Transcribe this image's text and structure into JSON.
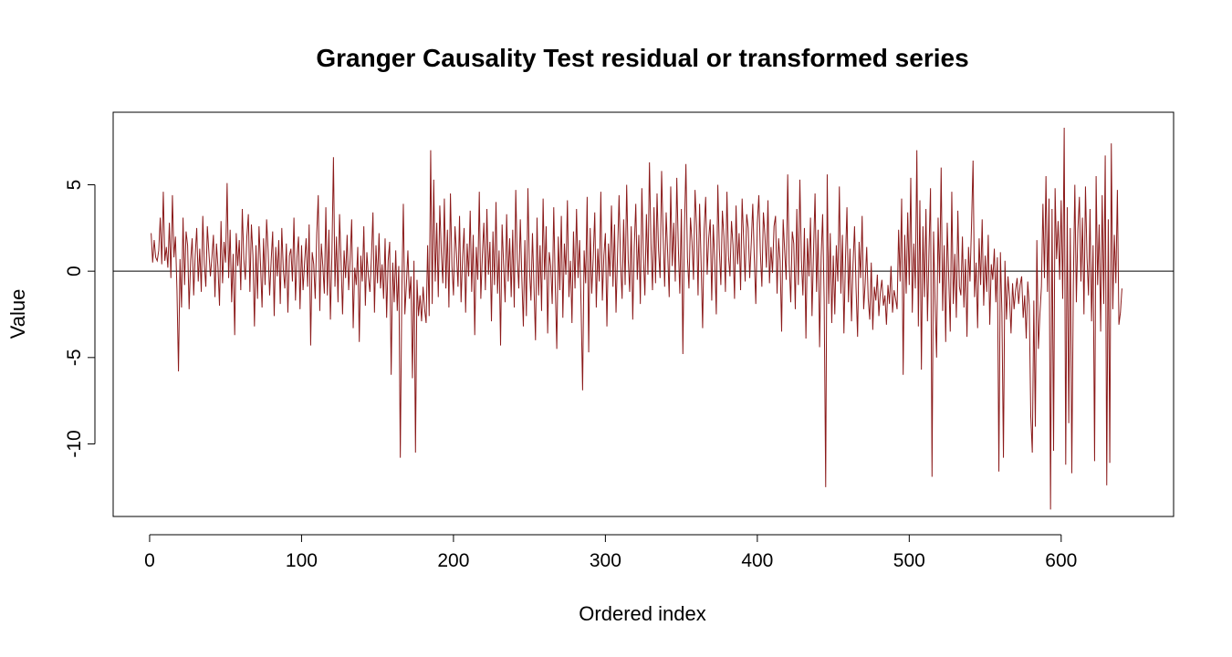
{
  "chart_data": {
    "type": "line",
    "title": "Granger Causality Test residual or transformed series",
    "xlabel": "Ordered index",
    "ylabel": "Value",
    "xlim": [
      -24,
      674
    ],
    "ylim": [
      -14.2,
      9.2
    ],
    "x_ticks": [
      0,
      100,
      200,
      300,
      400,
      500,
      600
    ],
    "y_ticks": [
      -10,
      -5,
      0,
      5
    ],
    "reference_line": 0,
    "line_color": "#8B1A1A",
    "grid": false,
    "legend": "none",
    "series": [
      {
        "x_start": 1,
        "x_step": 1,
        "values": [
          2.2,
          0.5,
          1.8,
          0.8,
          0.6,
          1.2,
          3.1,
          0.4,
          4.6,
          0.6,
          1.4,
          0.2,
          2.8,
          -0.4,
          4.4,
          0.8,
          2.0,
          -1.1,
          -5.8,
          0.7,
          -2.1,
          3.1,
          -0.8,
          2.3,
          1.5,
          -2.2,
          0.6,
          1.9,
          -1.4,
          0.9,
          2.5,
          -0.6,
          1.3,
          -1.2,
          3.2,
          0.4,
          -0.9,
          2.6,
          1.1,
          -0.3,
          0.8,
          2.1,
          -1.5,
          1.6,
          0.2,
          -2.0,
          2.9,
          -0.7,
          1.7,
          0.5,
          5.1,
          -0.4,
          2.4,
          -1.8,
          1.0,
          -3.7,
          2.2,
          0.3,
          1.8,
          -1.1,
          3.6,
          0.7,
          -0.5,
          2.0,
          3.3,
          -1.2,
          2.7,
          0.9,
          -3.2,
          1.5,
          -1.6,
          2.6,
          0.4,
          -2.1,
          1.9,
          -0.8,
          3.0,
          1.2,
          -1.4,
          0.6,
          2.3,
          -2.6,
          1.4,
          -0.3,
          1.8,
          -1.9,
          2.5,
          0.1,
          -1.0,
          1.6,
          -2.4,
          0.9,
          1.3,
          -0.6,
          3.1,
          -1.7,
          0.8,
          2.0,
          -2.2,
          1.5,
          -1.1,
          0.5,
          1.9,
          -0.9,
          2.7,
          -4.3,
          1.1,
          0.4,
          -1.6,
          2.2,
          4.4,
          -2.3,
          1.6,
          0.3,
          -1.3,
          3.7,
          -1.4,
          2.4,
          -2.8,
          1.0,
          6.6,
          -0.9,
          2.0,
          -1.8,
          3.3,
          0.6,
          -2.5,
          1.2,
          -0.4,
          2.1,
          -1.1,
          0.7,
          3.0,
          -3.3,
          0.2,
          -0.8,
          1.4,
          -4.1,
          0.9,
          -0.6,
          2.6,
          -2.0,
          1.1,
          -0.3,
          -1.2,
          0.8,
          3.4,
          -2.4,
          1.5,
          -0.7,
          2.2,
          -1.0,
          0.4,
          -1.6,
          1.9,
          -2.7,
          0.6,
          1.7,
          -6.0,
          0.5,
          -1.8,
          1.2,
          -2.3,
          0.3,
          -10.8,
          -1.2,
          3.9,
          -2.5,
          -0.8,
          1.2,
          -1.6,
          -0.3,
          -6.2,
          0.6,
          -10.5,
          -0.5,
          -2.6,
          -1.4,
          -2.9,
          -0.9,
          -2.2,
          -3.0,
          1.5,
          -2.6,
          7.0,
          -1.9,
          5.3,
          -0.6,
          2.8,
          -1.5,
          3.8,
          1.1,
          -0.7,
          4.2,
          -1.0,
          2.4,
          -2.1,
          4.5,
          0.3,
          -1.4,
          2.6,
          1.0,
          -0.9,
          3.2,
          -1.8,
          0.8,
          2.5,
          -2.4,
          1.6,
          -0.3,
          3.5,
          -1.2,
          2.1,
          -3.7,
          1.4,
          -0.5,
          4.6,
          -1.6,
          0.9,
          2.8,
          -1.1,
          3.6,
          -0.2,
          1.7,
          -2.9,
          2.3,
          -0.8,
          4.0,
          -1.3,
          1.2,
          -4.3,
          2.7,
          0.4,
          -1.8,
          3.3,
          -0.6,
          1.9,
          -1.5,
          2.4,
          -2.1,
          4.7,
          0.7,
          -1.0,
          3.0,
          -0.4,
          -3.2,
          1.8,
          -2.6,
          4.8,
          0.2,
          -1.7,
          2.2,
          -0.9,
          -4.0,
          3.1,
          -1.4,
          1.5,
          -2.3,
          4.2,
          -0.5,
          2.6,
          -3.6,
          1.1,
          0.3,
          -1.9,
          3.7,
          -0.8,
          -4.5,
          2.0,
          -1.1,
          3.2,
          -2.7,
          1.6,
          -0.2,
          4.1,
          -1.5,
          0.6,
          -3.0,
          2.3,
          -1.0,
          3.6,
          -0.4,
          1.8,
          -2.0,
          -6.9,
          1.2,
          -0.7,
          4.3,
          -4.7,
          2.5,
          -1.3,
          0.8,
          3.4,
          -2.1,
          1.3,
          -0.6,
          4.6,
          -1.7,
          0.9,
          2.2,
          -3.2,
          1.6,
          -0.3,
          3.8,
          -0.9,
          2.7,
          -2.4,
          1.0,
          4.4,
          0.4,
          -1.6,
          3.0,
          -0.8,
          5.0,
          0.7,
          -1.2,
          2.6,
          -2.8,
          1.4,
          3.9,
          -0.5,
          2.1,
          -1.9,
          4.8,
          0.9,
          -1.4,
          3.3,
          -0.2,
          6.3,
          1.6,
          -1.1,
          3.7,
          -0.7,
          4.5,
          1.2,
          -0.4,
          5.8,
          2.1,
          -0.9,
          3.4,
          1.0,
          -1.5,
          4.9,
          0.3,
          2.8,
          -0.6,
          5.4,
          1.4,
          -1.3,
          3.6,
          -4.8,
          2.3,
          6.2,
          0.8,
          -1.0,
          3.1,
          1.7,
          -0.5,
          4.7,
          2.6,
          -1.4,
          3.9,
          0.5,
          -3.3,
          2.4,
          4.3,
          -0.2,
          1.9,
          3.0,
          -1.7,
          2.7,
          0.6,
          -2.5,
          5.0,
          1.3,
          -0.8,
          3.5,
          2.0,
          -1.2,
          4.6,
          0.9,
          -0.3,
          2.9,
          1.5,
          -1.6,
          3.8,
          0.4,
          2.2,
          -1.1,
          4.2,
          1.8,
          -0.6,
          3.3,
          2.5,
          -0.4,
          1.6,
          3.9,
          0.8,
          -1.9,
          2.8,
          4.4,
          1.1,
          -0.9,
          3.4,
          2.1,
          0.2,
          4.1,
          -0.7,
          1.4,
          -0.1,
          2.6,
          3.2,
          -1.3,
          1.9,
          0.6,
          -3.5,
          3.0,
          1.2,
          -0.5,
          5.6,
          0.4,
          -1.8,
          2.3,
          1.6,
          -2.2,
          3.6,
          -0.8,
          5.3,
          0.7,
          -1.4,
          2.5,
          -3.9,
          1.9,
          -0.3,
          3.1,
          -2.6,
          1.1,
          4.5,
          -1.2,
          2.4,
          -4.4,
          0.8,
          3.3,
          -1.7,
          -12.5,
          5.6,
          -1.9,
          2.2,
          -3.0,
          0.9,
          -2.5,
          1.5,
          -0.6,
          4.9,
          -1.3,
          2.1,
          -3.6,
          0.6,
          3.7,
          -1.8,
          1.3,
          -2.9,
          0.4,
          2.6,
          -1.0,
          -3.8,
          1.7,
          -0.4,
          3.2,
          -2.2,
          -0.7,
          1.4,
          -1.6,
          -2.8,
          0.5,
          -3.4,
          -0.9,
          -1.7,
          -0.2,
          -2.6,
          -1.2,
          -0.5,
          -2.0,
          -1.4,
          -3.1,
          -0.8,
          -1.9,
          0.3,
          -2.4,
          -1.1,
          -1.6,
          -2.2,
          2.4,
          -0.6,
          4.2,
          -6.0,
          2.1,
          -1.3,
          3.4,
          -0.8,
          5.4,
          -2.4,
          1.6,
          -1.0,
          7.0,
          -3.2,
          4.1,
          -5.7,
          2.6,
          -1.5,
          3.6,
          -2.9,
          1.2,
          4.8,
          -11.9,
          2.3,
          -1.8,
          -5.0,
          3.1,
          -0.7,
          6.0,
          -2.3,
          1.5,
          -4.1,
          2.8,
          -0.4,
          -3.5,
          4.6,
          -1.9,
          1.0,
          -2.7,
          3.5,
          -0.9,
          -1.4,
          2.0,
          -2.1,
          0.7,
          -3.8,
          1.4,
          -0.6,
          2.7,
          6.4,
          -1.5,
          0.5,
          -3.3,
          1.9,
          -0.8,
          3.0,
          -2.0,
          0.9,
          -1.2,
          2.1,
          -3.1,
          0.4,
          -0.5,
          1.3,
          -1.8,
          0.8,
          -11.6,
          1.1,
          -2.4,
          -10.8,
          0.6,
          -2.8,
          -0.3,
          -1.5,
          -3.6,
          -0.7,
          -2.2,
          -1.1,
          -0.4,
          -1.9,
          -0.8,
          -0.3,
          -2.7,
          -1.4,
          -3.9,
          -0.6,
          -2.0,
          -8.4,
          -10.5,
          -1.7,
          -9.0,
          1.8,
          -4.5,
          -2.5,
          -0.9,
          3.9,
          -0.4,
          5.5,
          -1.2,
          4.2,
          -13.8,
          3.6,
          -10.4,
          4.8,
          0.7,
          2.9,
          -0.5,
          4.1,
          -1.6,
          8.3,
          -11.2,
          3.7,
          -8.8,
          2.5,
          -11.7,
          -0.9,
          5.0,
          -1.8,
          2.4,
          4.3,
          -0.6,
          3.1,
          -2.5,
          4.9,
          0.8,
          -1.4,
          3.6,
          -2.9,
          1.5,
          -11.0,
          5.5,
          -0.8,
          2.7,
          -3.5,
          4.4,
          -1.9,
          6.7,
          -12.4,
          3.0,
          -11.1,
          7.4,
          -2.2,
          2.1,
          -0.7,
          4.7,
          -3.1,
          -2.4,
          -1.0
        ]
      }
    ]
  }
}
